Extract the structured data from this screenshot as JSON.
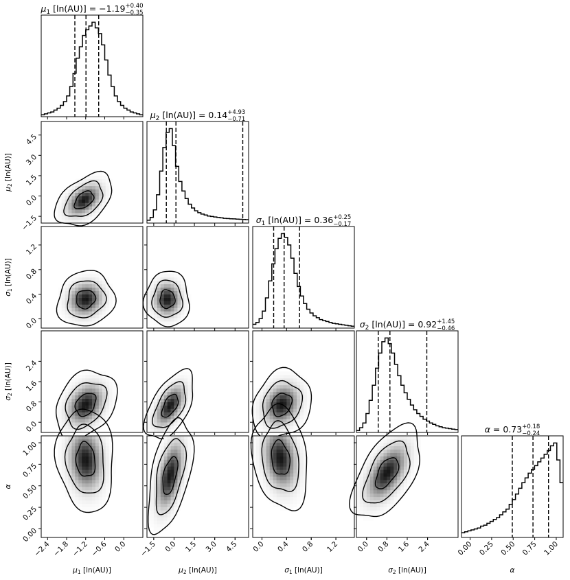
{
  "chart_data": {
    "type": "corner",
    "parameters": [
      {
        "symbol": "μ",
        "sub": "1",
        "unit": " [ln(AU)]",
        "median": "−1.19",
        "plus": "+0.40",
        "minus": "−0.35",
        "range": [
          -2.6,
          0.6
        ],
        "ticks": [
          -2.4,
          -1.8,
          -1.2,
          -0.6,
          0.0
        ],
        "tick_labels": [
          "−2.4",
          "−1.8",
          "−1.2",
          "−0.6",
          "0.0"
        ],
        "quantiles": [
          -1.54,
          -1.19,
          -0.79
        ],
        "hist": [
          2,
          3,
          4,
          5,
          7,
          9,
          12,
          16,
          22,
          32,
          46,
          62,
          74,
          86,
          92,
          96,
          100,
          94,
          88,
          76,
          60,
          44,
          32,
          22,
          16,
          12,
          9,
          7,
          5,
          4,
          3,
          2
        ]
      },
      {
        "symbol": "μ",
        "sub": "2",
        "unit": " [ln(AU)]",
        "median": "0.14",
        "plus": "+4.93",
        "minus": "−0.71",
        "range": [
          -2.0,
          5.5
        ],
        "ticks": [
          -1.5,
          0.0,
          1.5,
          3.0,
          4.5
        ],
        "tick_labels": [
          "−1.5",
          "0.0",
          "1.5",
          "3.0",
          "4.5"
        ],
        "quantiles": [
          -0.57,
          0.14,
          5.07
        ],
        "hist": [
          3,
          6,
          14,
          30,
          55,
          80,
          96,
          100,
          82,
          60,
          44,
          34,
          26,
          20,
          16,
          13,
          11,
          9.5,
          8.5,
          7.5,
          7,
          6.5,
          6,
          5.5,
          5,
          4.8,
          4.6,
          4.4,
          4.2,
          4,
          3.8,
          3.6
        ]
      },
      {
        "symbol": "σ",
        "sub": "1",
        "unit": " [ln(AU)]",
        "median": "0.36",
        "plus": "+0.25",
        "minus": "−0.17",
        "range": [
          -0.15,
          1.5
        ],
        "ticks": [
          0.0,
          0.4,
          0.8,
          1.2
        ],
        "tick_labels": [
          "0.0",
          "0.4",
          "0.8",
          "1.2"
        ],
        "quantiles": [
          0.19,
          0.36,
          0.61
        ],
        "hist": [
          4,
          6,
          10,
          18,
          32,
          50,
          68,
          84,
          95,
          100,
          96,
          88,
          74,
          58,
          44,
          34,
          26,
          20,
          16,
          13,
          11,
          9,
          8,
          7,
          6,
          5,
          4.5,
          4,
          3.5,
          3,
          2.5,
          2
        ]
      },
      {
        "symbol": "σ",
        "sub": "2",
        "unit": " [ln(AU)]",
        "median": "0.92",
        "plus": "+1.45",
        "minus": "−0.46",
        "range": [
          -0.4,
          3.6
        ],
        "ticks": [
          0.0,
          0.8,
          1.6,
          2.4
        ],
        "tick_labels": [
          "0.0",
          "0.8",
          "1.6",
          "2.4"
        ],
        "quantiles": [
          0.46,
          0.92,
          2.37
        ],
        "hist": [
          2,
          5,
          10,
          20,
          34,
          50,
          68,
          84,
          96,
          100,
          94,
          84,
          72,
          60,
          50,
          42,
          35,
          29,
          24,
          20,
          17,
          14,
          12,
          10,
          8.5,
          7,
          6,
          5,
          4.5,
          4,
          3.5,
          3
        ]
      },
      {
        "symbol": "α",
        "sub": "",
        "unit": "",
        "median": "0.73",
        "plus": "+0.18",
        "minus": "−0.24",
        "range": [
          -0.1,
          1.08
        ],
        "ticks": [
          0.0,
          0.25,
          0.5,
          0.75,
          1.0
        ],
        "tick_labels": [
          "0.00",
          "0.25",
          "0.50",
          "0.75",
          "1.00"
        ],
        "quantiles": [
          0.49,
          0.73,
          0.91
        ],
        "hist": [
          5,
          6,
          7,
          8,
          9,
          10,
          12,
          13,
          15,
          17,
          19,
          21,
          24,
          27,
          30,
          35,
          40,
          46,
          52,
          58,
          63,
          68,
          72,
          76,
          80,
          84,
          88,
          92,
          97,
          100,
          82,
          58
        ]
      }
    ],
    "hist2d_peaks": [
      {
        "row": 1,
        "col": 0,
        "x": -1.25,
        "y": -0.3,
        "sx": 0.3,
        "sy": 0.65,
        "rho": 0.45
      },
      {
        "row": 2,
        "col": 0,
        "x": -1.2,
        "y": 0.32,
        "sx": 0.3,
        "sy": 0.15,
        "rho": 0.1
      },
      {
        "row": 2,
        "col": 1,
        "x": -0.5,
        "y": 0.32,
        "sx": 0.55,
        "sy": 0.15,
        "rho": 0.0
      },
      {
        "row": 3,
        "col": 0,
        "x": -1.2,
        "y": 0.7,
        "sx": 0.32,
        "sy": 0.45,
        "rho": 0.3
      },
      {
        "row": 3,
        "col": 1,
        "x": -0.3,
        "y": 0.65,
        "sx": 0.6,
        "sy": 0.45,
        "rho": 0.55
      },
      {
        "row": 3,
        "col": 2,
        "x": 0.32,
        "y": 0.7,
        "sx": 0.16,
        "sy": 0.45,
        "rho": 0.2
      },
      {
        "row": 4,
        "col": 0,
        "x": -1.2,
        "y": 0.8,
        "sx": 0.3,
        "sy": 0.2,
        "rho": -0.1
      },
      {
        "row": 4,
        "col": 1,
        "x": -0.3,
        "y": 0.62,
        "sx": 0.55,
        "sy": 0.22,
        "rho": 0.5
      },
      {
        "row": 4,
        "col": 2,
        "x": 0.3,
        "y": 0.82,
        "sx": 0.15,
        "sy": 0.2,
        "rho": -0.2
      },
      {
        "row": 4,
        "col": 3,
        "x": 0.8,
        "y": 0.65,
        "sx": 0.45,
        "sy": 0.18,
        "rho": 0.55
      }
    ],
    "contour_levels": [
      "39%",
      "86%",
      "99%"
    ]
  }
}
